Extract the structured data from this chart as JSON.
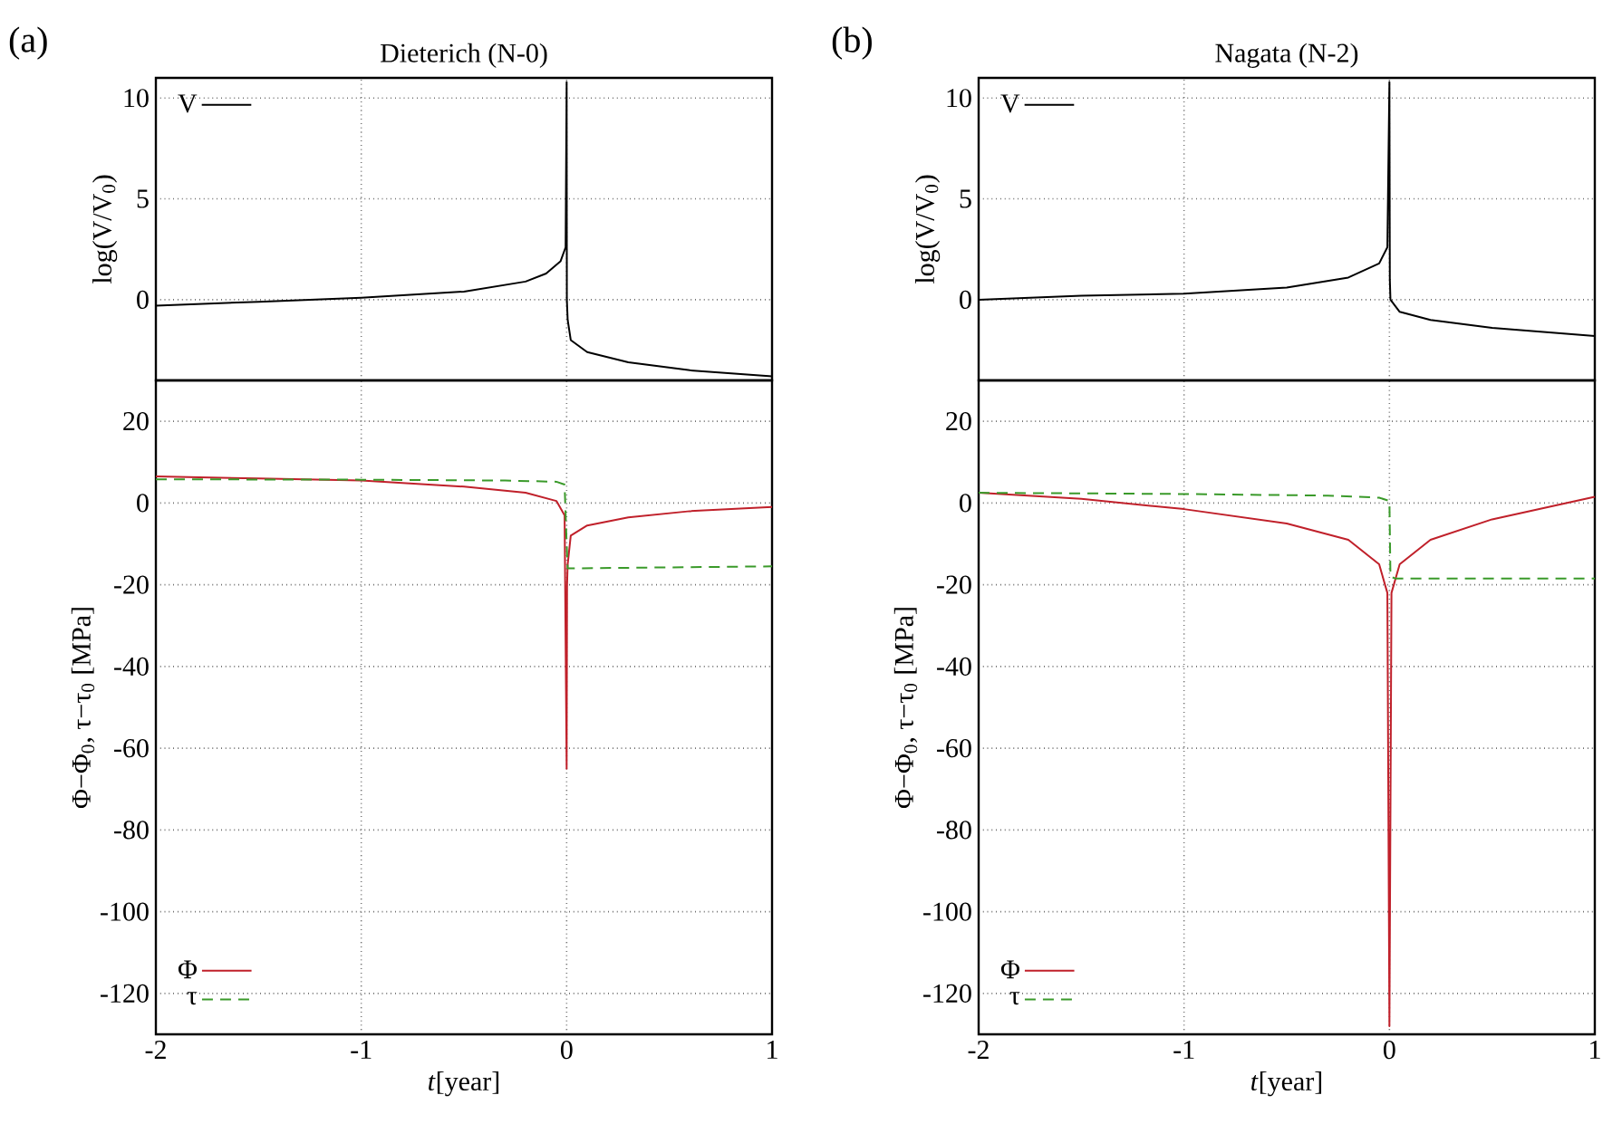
{
  "chart_data": [
    {
      "type": "line",
      "title": "Dieterich (N-0)",
      "ylabel": "log(V/V$_{0}$)",
      "annotations": [
        "(a)"
      ],
      "xlim": [
        -2,
        1
      ],
      "xticks": [
        -2,
        -1,
        0,
        1
      ],
      "ylim": [
        -4,
        11
      ],
      "yticks": [
        0,
        5,
        10
      ],
      "tick_labels": "y",
      "grid": true,
      "legend": "top left",
      "series": [
        {
          "name": "V",
          "color": "#000000",
          "x": [
            -2,
            -1.5,
            -1,
            -0.5,
            -0.2,
            -0.1,
            -0.03,
            -0.005,
            0,
            0.001,
            0.005,
            0.02,
            0.1,
            0.3,
            0.6,
            1
          ],
          "values": [
            -0.3,
            -0.1,
            0.1,
            0.4,
            0.9,
            1.3,
            1.9,
            2.6,
            10.8,
            0,
            -1,
            -2,
            -2.6,
            -3.1,
            -3.5,
            -3.8
          ]
        }
      ]
    },
    {
      "type": "line",
      "xlabel": "*t*[year]",
      "ylabel": "Φ−Φ$_{0}$, τ−τ$_{0}$ [MPa]",
      "xlim": [
        -2,
        1
      ],
      "xticks": [
        -2,
        -1,
        0,
        1
      ],
      "ylim": [
        -130,
        30
      ],
      "yticks": [
        20,
        0,
        -20,
        -40,
        -60,
        -80,
        -100,
        -120
      ],
      "grid": true,
      "legend": "bottom left",
      "series": [
        {
          "name": "Φ",
          "color": "#c0202a",
          "x": [
            -2,
            -1.5,
            -1,
            -0.5,
            -0.2,
            -0.05,
            -0.01,
            0,
            0.002,
            0.005,
            0.02,
            0.1,
            0.3,
            0.6,
            1
          ],
          "values": [
            6.5,
            6,
            5.5,
            4,
            2.5,
            0.5,
            -3,
            -65,
            -20,
            -15,
            -8,
            -5.5,
            -3.5,
            -2,
            -1
          ]
        },
        {
          "name": "τ",
          "color": "#3a9a2a",
          "line_style": "dashed",
          "x": [
            -2,
            -1,
            -0.3,
            -0.05,
            -0.01,
            0,
            0.005,
            0.02,
            1
          ],
          "values": [
            5.8,
            5.7,
            5.5,
            5.2,
            4.5,
            -10,
            -16,
            -16,
            -15.5
          ]
        }
      ]
    },
    {
      "type": "line",
      "title": "Nagata (N-2)",
      "ylabel": "log(V/V$_{0}$)",
      "annotations": [
        "(b)"
      ],
      "xlim": [
        -2,
        1
      ],
      "xticks": [
        -2,
        -1,
        0,
        1
      ],
      "ylim": [
        -4,
        11
      ],
      "yticks": [
        0,
        5,
        10
      ],
      "tick_labels": "y",
      "grid": true,
      "legend": "top left",
      "series": [
        {
          "name": "V",
          "color": "#000000",
          "x": [
            -2,
            -1.5,
            -1,
            -0.5,
            -0.2,
            -0.05,
            -0.01,
            0,
            0.002,
            0.005,
            0.05,
            0.2,
            0.5,
            1
          ],
          "values": [
            0,
            0.2,
            0.3,
            0.6,
            1.1,
            1.8,
            2.6,
            10.8,
            1,
            0,
            -0.6,
            -1,
            -1.4,
            -1.8
          ]
        }
      ]
    },
    {
      "type": "line",
      "xlabel": "*t*[year]",
      "ylabel": "Φ−Φ$_{0}$, τ−τ$_{0}$ [MPa]",
      "xlim": [
        -2,
        1
      ],
      "xticks": [
        -2,
        -1,
        0,
        1
      ],
      "ylim": [
        -130,
        30
      ],
      "yticks": [
        20,
        0,
        -20,
        -40,
        -60,
        -80,
        -100,
        -120
      ],
      "grid": true,
      "legend": "bottom left",
      "series": [
        {
          "name": "Φ",
          "color": "#c0202a",
          "x": [
            -2,
            -1.5,
            -1,
            -0.5,
            -0.2,
            -0.05,
            -0.01,
            0,
            0.01,
            0.05,
            0.2,
            0.5,
            1
          ],
          "values": [
            2.5,
            1,
            -1.5,
            -5,
            -9,
            -15,
            -22,
            -128,
            -22,
            -15,
            -9,
            -4,
            1.5
          ]
        },
        {
          "name": "τ",
          "color": "#3a9a2a",
          "line_style": "dashed",
          "x": [
            -2,
            -1,
            -0.3,
            -0.05,
            0,
            0.005,
            0.03,
            1
          ],
          "values": [
            2.5,
            2.2,
            1.8,
            1.3,
            0.5,
            -18,
            -18.5,
            -18.5
          ]
        }
      ]
    }
  ]
}
